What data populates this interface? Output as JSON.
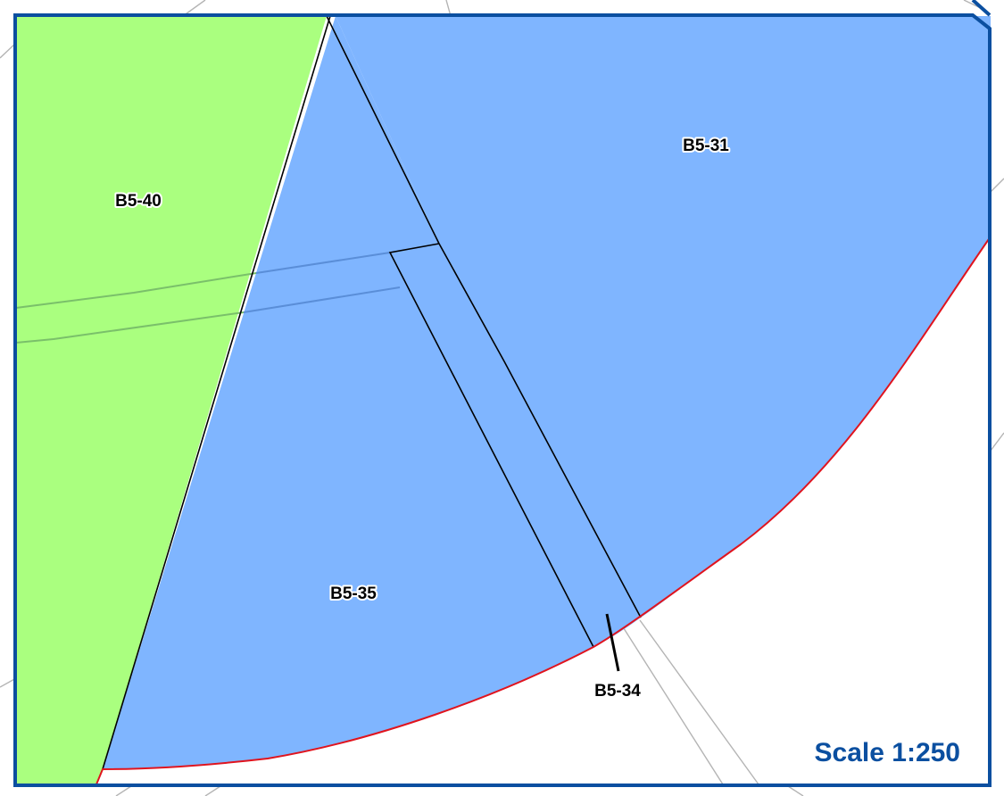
{
  "map": {
    "parcels": [
      {
        "id": "B5-40",
        "label": "B5-40",
        "color": "#aaff7f"
      },
      {
        "id": "B5-31",
        "label": "B5-31",
        "color": "#7fb5ff"
      },
      {
        "id": "B5-35",
        "label": "B5-35",
        "color": "#7fb5ff"
      },
      {
        "id": "B5-34",
        "label": "B5-34",
        "color": "#7fb5ff"
      }
    ],
    "scale_text": "Scale 1:250",
    "colors": {
      "frame": "#0b4fa0",
      "boundary": "#e0141e",
      "lot_line": "#000000",
      "background_lines": "#b4b4b4",
      "easement_green": "#7ac06a",
      "easement_blue": "#5a8ed8",
      "scale_text": "#0b4fa0"
    }
  }
}
